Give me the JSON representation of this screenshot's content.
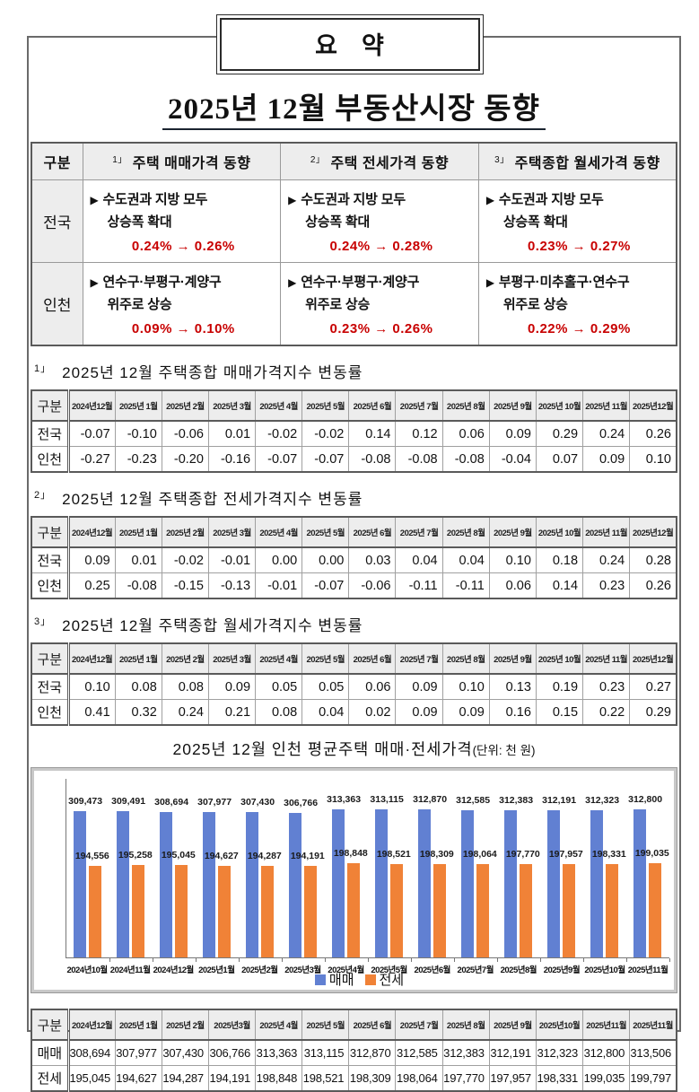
{
  "icons": {
    "bullet": "▶"
  },
  "page": {
    "summary_box_label": "요    약",
    "title": "2025년 12월 부동산시장 동향"
  },
  "summary_table": {
    "corner": "구분",
    "columns": [
      {
        "sup": "1」",
        "label": "주택 매매가격 동향"
      },
      {
        "sup": "2」",
        "label": "주택 전세가격 동향"
      },
      {
        "sup": "3」",
        "label": "주택종합 월세가격 동향"
      }
    ],
    "rows": [
      {
        "label": "전국",
        "cells": [
          {
            "line1": "수도권과 지방 모두",
            "line2": "상승폭 확대",
            "change": "0.24% → 0.26%"
          },
          {
            "line1": "수도권과 지방 모두",
            "line2": "상승폭 확대",
            "change": "0.24% → 0.28%"
          },
          {
            "line1": "수도권과 지방 모두",
            "line2": "상승폭 확대",
            "change": "0.23% → 0.27%"
          }
        ]
      },
      {
        "label": "인천",
        "cells": [
          {
            "line1": "연수구·부평구·계양구",
            "line2": "위주로 상승",
            "change": "0.09% → 0.10%"
          },
          {
            "line1": "연수구·부평구·계양구",
            "line2": "위주로 상승",
            "change": "0.23% → 0.26%"
          },
          {
            "line1": "부평구·미추홀구·연수구",
            "line2": "위주로 상승",
            "change": "0.22% → 0.29%"
          }
        ]
      }
    ]
  },
  "sections": [
    {
      "sup": "1」",
      "heading": "2025년 12월 주택종합 매매가격지수 변동률",
      "table": {
        "corner": "구분",
        "headers": [
          "2024년12월",
          "2025년 1월",
          "2025년 2월",
          "2025년 3월",
          "2025년 4월",
          "2025년 5월",
          "2025년 6월",
          "2025년 7월",
          "2025년 8월",
          "2025년 9월",
          "2025년 10월",
          "2025년 11월",
          "2025년12월"
        ],
        "rows": [
          {
            "label": "전국",
            "values": [
              "-0.07",
              "-0.10",
              "-0.06",
              "0.01",
              "-0.02",
              "-0.02",
              "0.14",
              "0.12",
              "0.06",
              "0.09",
              "0.29",
              "0.24",
              "0.26"
            ]
          },
          {
            "label": "인천",
            "values": [
              "-0.27",
              "-0.23",
              "-0.20",
              "-0.16",
              "-0.07",
              "-0.07",
              "-0.08",
              "-0.08",
              "-0.08",
              "-0.04",
              "0.07",
              "0.09",
              "0.10"
            ]
          }
        ]
      }
    },
    {
      "sup": "2」",
      "heading": "2025년 12월 주택종합 전세가격지수 변동률",
      "table": {
        "corner": "구분",
        "headers": [
          "2024년12월",
          "2025년 1월",
          "2025년 2월",
          "2025년 3월",
          "2025년 4월",
          "2025년 5월",
          "2025년 6월",
          "2025년 7월",
          "2025년 8월",
          "2025년 9월",
          "2025년 10월",
          "2025년 11월",
          "2025년12월"
        ],
        "rows": [
          {
            "label": "전국",
            "values": [
              "0.09",
              "0.01",
              "-0.02",
              "-0.01",
              "0.00",
              "0.00",
              "0.03",
              "0.04",
              "0.04",
              "0.10",
              "0.18",
              "0.24",
              "0.28"
            ]
          },
          {
            "label": "인천",
            "values": [
              "0.25",
              "-0.08",
              "-0.15",
              "-0.13",
              "-0.01",
              "-0.07",
              "-0.06",
              "-0.11",
              "-0.11",
              "0.06",
              "0.14",
              "0.23",
              "0.26"
            ]
          }
        ]
      }
    },
    {
      "sup": "3」",
      "heading": "2025년 12월 주택종합 월세가격지수 변동률",
      "table": {
        "corner": "구분",
        "headers": [
          "2024년12월",
          "2025년 1월",
          "2025년 2월",
          "2025년 3월",
          "2025년 4월",
          "2025년 5월",
          "2025년 6월",
          "2025년 7월",
          "2025년 8월",
          "2025년 9월",
          "2025년 10월",
          "2025년 11월",
          "2025년12월"
        ],
        "rows": [
          {
            "label": "전국",
            "values": [
              "0.10",
              "0.08",
              "0.08",
              "0.09",
              "0.05",
              "0.05",
              "0.06",
              "0.09",
              "0.10",
              "0.13",
              "0.19",
              "0.23",
              "0.27"
            ]
          },
          {
            "label": "인천",
            "values": [
              "0.41",
              "0.32",
              "0.24",
              "0.21",
              "0.08",
              "0.04",
              "0.02",
              "0.09",
              "0.09",
              "0.16",
              "0.15",
              "0.22",
              "0.29"
            ]
          }
        ]
      }
    }
  ],
  "chart_data": {
    "type": "bar",
    "title": "2025년 12월 인천 평균주택 매매·전세가격",
    "unit_note": "(단위: 천 원)",
    "categories": [
      "2024년10월",
      "2024년11월",
      "2024년12월",
      "2025년1월",
      "2025년2월",
      "2025년3월",
      "2025년4월",
      "2025년5월",
      "2025년6월",
      "2025년7월",
      "2025년8월",
      "2025년9월",
      "2025년10월",
      "2025년11월"
    ],
    "series": [
      {
        "name": "매매",
        "color": "#6180d2",
        "values": [
          309473,
          309491,
          308694,
          307977,
          307430,
          306766,
          313363,
          313115,
          312870,
          312585,
          312383,
          312191,
          312323,
          312800
        ]
      },
      {
        "name": "전세",
        "color": "#f08237",
        "values": [
          194556,
          195258,
          195045,
          194627,
          194287,
          194191,
          198848,
          198521,
          198309,
          198064,
          197770,
          197957,
          198331,
          199035
        ]
      }
    ],
    "ylim": [
      0,
      380000
    ],
    "grid": false,
    "legend_position": "bottom",
    "data_labels": true
  },
  "bottom_table": {
    "corner": "구분",
    "headers": [
      "2024년12월",
      "2025년 1월",
      "2025년 2월",
      "2025년3월",
      "2025년 4월",
      "2025년 5월",
      "2025년 6월",
      "2025년 7월",
      "2025년 8월",
      "2025년 9월",
      "2025년10월",
      "2025년11월",
      "2025년11월"
    ],
    "rows": [
      {
        "label": "매매",
        "values": [
          "308,694",
          "307,977",
          "307,430",
          "306,766",
          "313,363",
          "313,115",
          "312,870",
          "312,585",
          "312,383",
          "312,191",
          "312,323",
          "312,800",
          "313,506"
        ]
      },
      {
        "label": "전세",
        "values": [
          "195,045",
          "194,627",
          "194,287",
          "194,191",
          "198,848",
          "198,521",
          "198,309",
          "198,064",
          "197,770",
          "197,957",
          "198,331",
          "199,035",
          "199,797"
        ]
      }
    ]
  }
}
